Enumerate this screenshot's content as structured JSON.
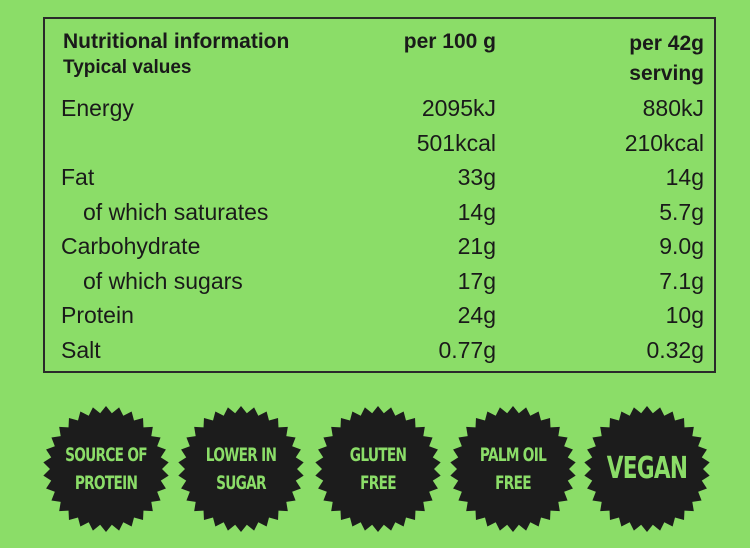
{
  "header": {
    "title": "Nutritional information",
    "subtitle": "Typical values",
    "col1": "per 100 g",
    "col2_line1": "per 42g",
    "col2_line2": "serving"
  },
  "rows": [
    {
      "label": "Energy",
      "per100": "2095kJ",
      "perServing": "880kJ",
      "indent": false
    },
    {
      "label": "",
      "per100": "501kcal",
      "perServing": "210kcal",
      "indent": false
    },
    {
      "label": "Fat",
      "per100": "33g",
      "perServing": "14g",
      "indent": false
    },
    {
      "label": "of which saturates",
      "per100": "14g",
      "perServing": "5.7g",
      "indent": true
    },
    {
      "label": "Carbohydrate",
      "per100": "21g",
      "perServing": "9.0g",
      "indent": false
    },
    {
      "label": "of which sugars",
      "per100": "17g",
      "perServing": "7.1g",
      "indent": true
    },
    {
      "label": "Protein",
      "per100": "24g",
      "perServing": "10g",
      "indent": false
    },
    {
      "label": "Salt",
      "per100": "0.77g",
      "perServing": "0.32g",
      "indent": false
    }
  ],
  "badges": [
    {
      "line1": "SOURCE OF",
      "line2": "PROTEIN"
    },
    {
      "line1": "LOWER IN",
      "line2": "SUGAR"
    },
    {
      "line1": "GLUTEN",
      "line2": "FREE"
    },
    {
      "line1": "PALM OIL",
      "line2": "FREE"
    },
    {
      "line1": "VEGAN",
      "line2": ""
    }
  ],
  "colors": {
    "background": "#8bdd68",
    "badge": "#1c1c1c",
    "text": "#1a1a1a"
  }
}
